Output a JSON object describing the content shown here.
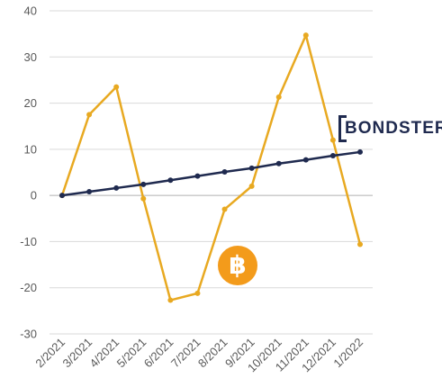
{
  "chart_data": {
    "type": "line",
    "categories": [
      "2/2021",
      "3/2021",
      "4/2021",
      "5/2021",
      "6/2021",
      "7/2021",
      "8/2021",
      "9/2021",
      "10/2021",
      "11/2021",
      "12/2021",
      "1/2022"
    ],
    "series": [
      {
        "name": "",
        "color": "#e8a921",
        "values": [
          0,
          17.5,
          23.5,
          -0.7,
          -22.7,
          -21.2,
          -3.0,
          2.0,
          21.3,
          34.7,
          12.0,
          -10.6
        ]
      },
      {
        "name": "",
        "color": "#1f2a4f",
        "values": [
          0,
          0.8,
          1.6,
          2.4,
          3.3,
          4.2,
          5.1,
          5.9,
          6.9,
          7.7,
          8.6,
          9.4
        ]
      }
    ],
    "yticks": [
      40,
      30,
      20,
      10,
      0,
      -10,
      -20,
      -30
    ],
    "ylim": [
      -30,
      40
    ],
    "grid": true,
    "title": "",
    "xlabel": "",
    "ylabel": ""
  },
  "logos": {
    "brand_name": "BONDSTER",
    "brand_color": "#1f2a4f",
    "bitcoin_icon": "bitcoin-icon",
    "bitcoin_glyph": "฿",
    "bitcoin_color": "#f39b1b"
  }
}
